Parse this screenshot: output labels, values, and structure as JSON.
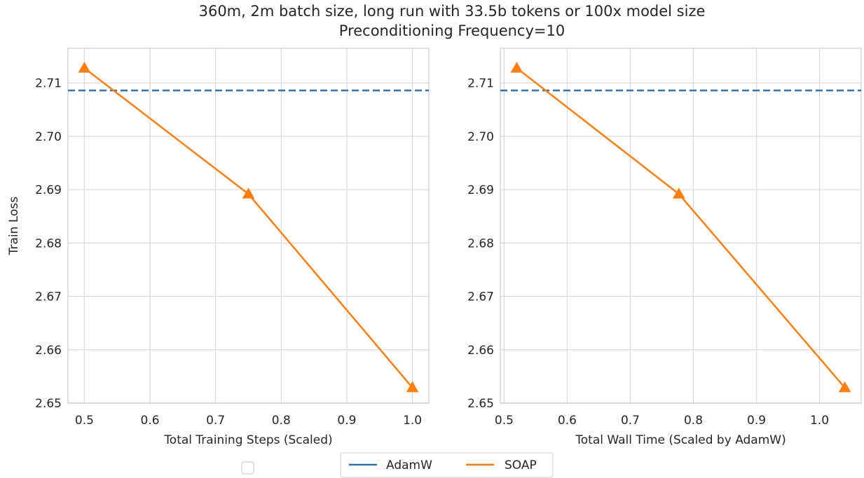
{
  "title_line1": "360m, 2m batch size, long run with 33.5b tokens or 100x model size",
  "title_line2": "Preconditioning Frequency=10",
  "colors": {
    "adamw": "#3274b5",
    "soap": "#ff7f0e",
    "grid": "#d9d9d9",
    "axis": "#cccccc"
  },
  "legend": {
    "items": [
      "AdamW",
      "SOAP"
    ]
  },
  "chart_data": [
    {
      "type": "line",
      "xlabel": "Total Training Steps (Scaled)",
      "ylabel": "Train Loss",
      "xlim": [
        0.475,
        1.025
      ],
      "ylim": [
        2.65,
        2.7165
      ],
      "xticks": [
        0.5,
        0.6,
        0.7,
        0.8,
        0.9,
        1.0
      ],
      "xtick_labels": [
        "0.5",
        "0.6",
        "0.7",
        "0.8",
        "0.9",
        "1.0"
      ],
      "yticks": [
        2.65,
        2.66,
        2.67,
        2.68,
        2.69,
        2.7,
        2.71
      ],
      "ytick_labels": [
        "2.65",
        "2.66",
        "2.67",
        "2.68",
        "2.69",
        "2.70",
        "2.71"
      ],
      "grid": true,
      "series": [
        {
          "name": "AdamW",
          "style": "dashed-hline",
          "y": 2.7086
        },
        {
          "name": "SOAP",
          "marker": "triangle",
          "x": [
            0.5,
            0.75,
            1.0
          ],
          "y": [
            2.7128,
            2.6892,
            2.6529
          ]
        }
      ]
    },
    {
      "type": "line",
      "xlabel": "Total Wall Time (Scaled by AdamW)",
      "ylabel": "",
      "xlim": [
        0.494,
        1.066
      ],
      "ylim": [
        2.65,
        2.7165
      ],
      "xticks": [
        0.5,
        0.6,
        0.7,
        0.8,
        0.9,
        1.0
      ],
      "xtick_labels": [
        "0.5",
        "0.6",
        "0.7",
        "0.8",
        "0.9",
        "1.0"
      ],
      "yticks": [
        2.65,
        2.66,
        2.67,
        2.68,
        2.69,
        2.7,
        2.71
      ],
      "ytick_labels": [
        "2.65",
        "2.66",
        "2.67",
        "2.68",
        "2.69",
        "2.70",
        "2.71"
      ],
      "grid": true,
      "series": [
        {
          "name": "AdamW",
          "style": "dashed-hline",
          "y": 2.7086
        },
        {
          "name": "SOAP",
          "marker": "triangle",
          "x": [
            0.52,
            0.777,
            1.04
          ],
          "y": [
            2.7128,
            2.6892,
            2.6529
          ]
        }
      ]
    }
  ]
}
